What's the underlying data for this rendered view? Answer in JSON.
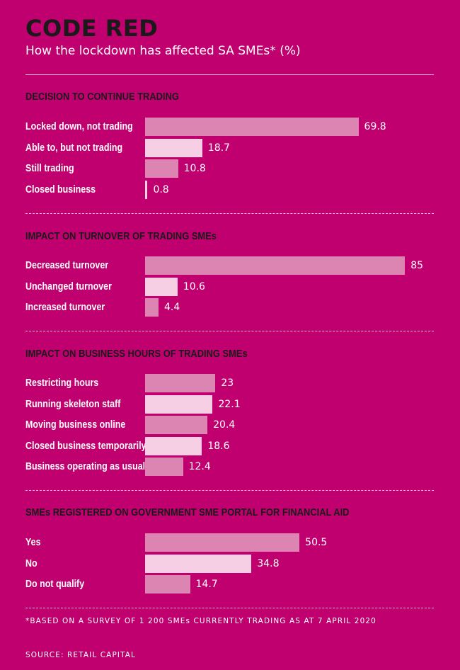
{
  "title": "CODE RED",
  "subtitle": "How the lockdown has affected SA SMEs* (%)",
  "footnote": "*BASED ON A SURVEY OF 1 200 SMEs CURRENTLY TRADING AS AT 7 APRIL 2020",
  "source": "SOURCE: RETAIL CAPITAL",
  "colors": {
    "background": "#c1006f",
    "bar_dark": "#dc84b2",
    "bar_light": "#f6cfe4",
    "title": "#1a1a1a",
    "text": "#ffffff"
  },
  "chart_data": [
    {
      "type": "bar",
      "orientation": "horizontal",
      "title": "DECISION TO CONTINUE TRADING",
      "categories": [
        "Locked down, not trading",
        "Able to, but not trading",
        "Still trading",
        "Closed business"
      ],
      "values": [
        69.8,
        18.7,
        10.8,
        0.8
      ],
      "value_labels": [
        "69.8",
        "18.7",
        "10.8",
        "0.8"
      ],
      "xlim": [
        0,
        100
      ]
    },
    {
      "type": "bar",
      "orientation": "horizontal",
      "title": "IMPACT ON TURNOVER OF TRADING SMEs",
      "categories": [
        "Decreased turnover",
        "Unchanged turnover",
        "Increased turnover"
      ],
      "values": [
        85,
        10.6,
        4.4
      ],
      "value_labels": [
        "85",
        "10.6",
        "4.4"
      ],
      "xlim": [
        0,
        100
      ]
    },
    {
      "type": "bar",
      "orientation": "horizontal",
      "title": "IMPACT ON BUSINESS HOURS OF TRADING SMEs",
      "categories": [
        "Restricting hours",
        "Running skeleton staff",
        "Moving business online",
        "Closed business temporarily",
        "Business operating as usual"
      ],
      "values": [
        23,
        22.1,
        20.4,
        18.6,
        12.4
      ],
      "value_labels": [
        "23",
        "22.1",
        "20.4",
        "18.6",
        "12.4"
      ],
      "xlim": [
        0,
        100
      ]
    },
    {
      "type": "bar",
      "orientation": "horizontal",
      "title": "SMEs REGISTERED ON GOVERNMENT SME PORTAL FOR FINANCIAL AID",
      "categories": [
        "Yes",
        "No",
        "Do not qualify"
      ],
      "values": [
        50.5,
        34.8,
        14.7
      ],
      "value_labels": [
        "50.5",
        "34.8",
        "14.7"
      ],
      "xlim": [
        0,
        100
      ]
    }
  ]
}
